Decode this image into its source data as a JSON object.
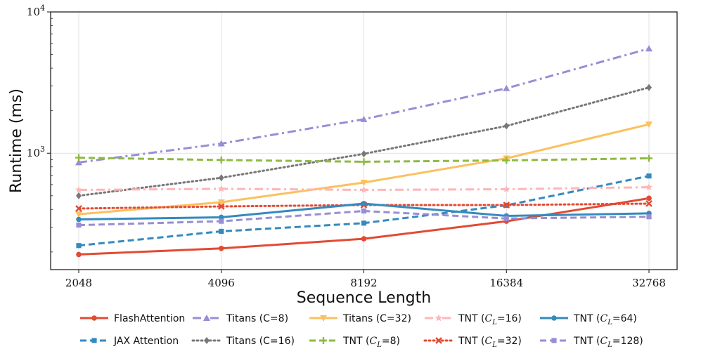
{
  "chart_data": {
    "type": "line",
    "xscale": "log2",
    "yscale": "log10",
    "x": [
      2048,
      4096,
      8192,
      16384,
      32768
    ],
    "xtick_labels": [
      "2048",
      "4096",
      "8192",
      "16384",
      "32768"
    ],
    "xlabel": "Sequence Length",
    "ylabel": "Runtime (ms)",
    "ylim": [
      150,
      10000
    ],
    "yticks": [
      {
        "base": "10",
        "exp": "3",
        "value": 1000
      },
      {
        "base": "10",
        "exp": "4",
        "value": 10000
      }
    ],
    "grid": true,
    "legend_position": "bottom",
    "series": [
      {
        "name": "FlashAttention",
        "color": "#e24a33",
        "style": "solid",
        "marker": "circle",
        "values": [
          192,
          212,
          248,
          330,
          480
        ]
      },
      {
        "name": "JAX Attention",
        "color": "#348abd",
        "style": "dashed",
        "marker": "square",
        "values": [
          222,
          280,
          320,
          428,
          690
        ]
      },
      {
        "name": "Titans (C=8)",
        "color": "#988ed5",
        "style": "dashdot",
        "marker": "triangle-up",
        "values": [
          860,
          1170,
          1740,
          2880,
          5500
        ]
      },
      {
        "name": "Titans (C=16)",
        "color": "#777777",
        "style": "dotted",
        "marker": "diamond",
        "values": [
          500,
          670,
          990,
          1560,
          2920
        ]
      },
      {
        "name": "Titans (C=32)",
        "color": "#fbc15e",
        "style": "solid",
        "marker": "triangle-down",
        "values": [
          370,
          450,
          620,
          920,
          1600
        ]
      },
      {
        "name": "TNT (C_L=8)",
        "color": "#8eba42",
        "style": "dashed",
        "marker": "plus",
        "values": [
          930,
          895,
          870,
          890,
          920
        ]
      },
      {
        "name": "TNT (C_L=16)",
        "color": "#ffb5b8",
        "style": "dashdot",
        "marker": "star",
        "values": [
          550,
          560,
          550,
          556,
          575
        ]
      },
      {
        "name": "TNT (C_L=32)",
        "color": "#e24a33",
        "style": "dotted",
        "marker": "x",
        "values": [
          406,
          420,
          430,
          430,
          440
        ]
      },
      {
        "name": "TNT (C_L=64)",
        "color": "#348abd",
        "style": "solid",
        "marker": "circle",
        "values": [
          340,
          352,
          440,
          360,
          375
        ]
      },
      {
        "name": "TNT (C_L=128)",
        "color": "#988ed5",
        "style": "dashed",
        "marker": "square",
        "values": [
          310,
          330,
          390,
          345,
          355
        ]
      }
    ],
    "legend_labels": [
      {
        "type": "plain",
        "text": "FlashAttention"
      },
      {
        "type": "plain",
        "text": "JAX Attention"
      },
      {
        "type": "plain",
        "text": "Titans (C=8)"
      },
      {
        "type": "plain",
        "text": "Titans (C=16)"
      },
      {
        "type": "plain",
        "text": "Titans (C=32)"
      },
      {
        "type": "sub",
        "pre": "TNT (",
        "var": "C",
        "sub": "L",
        "post": "=8)"
      },
      {
        "type": "sub",
        "pre": "TNT (",
        "var": "C",
        "sub": "L",
        "post": "=16)"
      },
      {
        "type": "sub",
        "pre": "TNT (",
        "var": "C",
        "sub": "L",
        "post": "=32)"
      },
      {
        "type": "sub",
        "pre": "TNT (",
        "var": "C",
        "sub": "L",
        "post": "=64)"
      },
      {
        "type": "sub",
        "pre": "TNT (",
        "var": "C",
        "sub": "L",
        "post": "=128)"
      }
    ]
  }
}
